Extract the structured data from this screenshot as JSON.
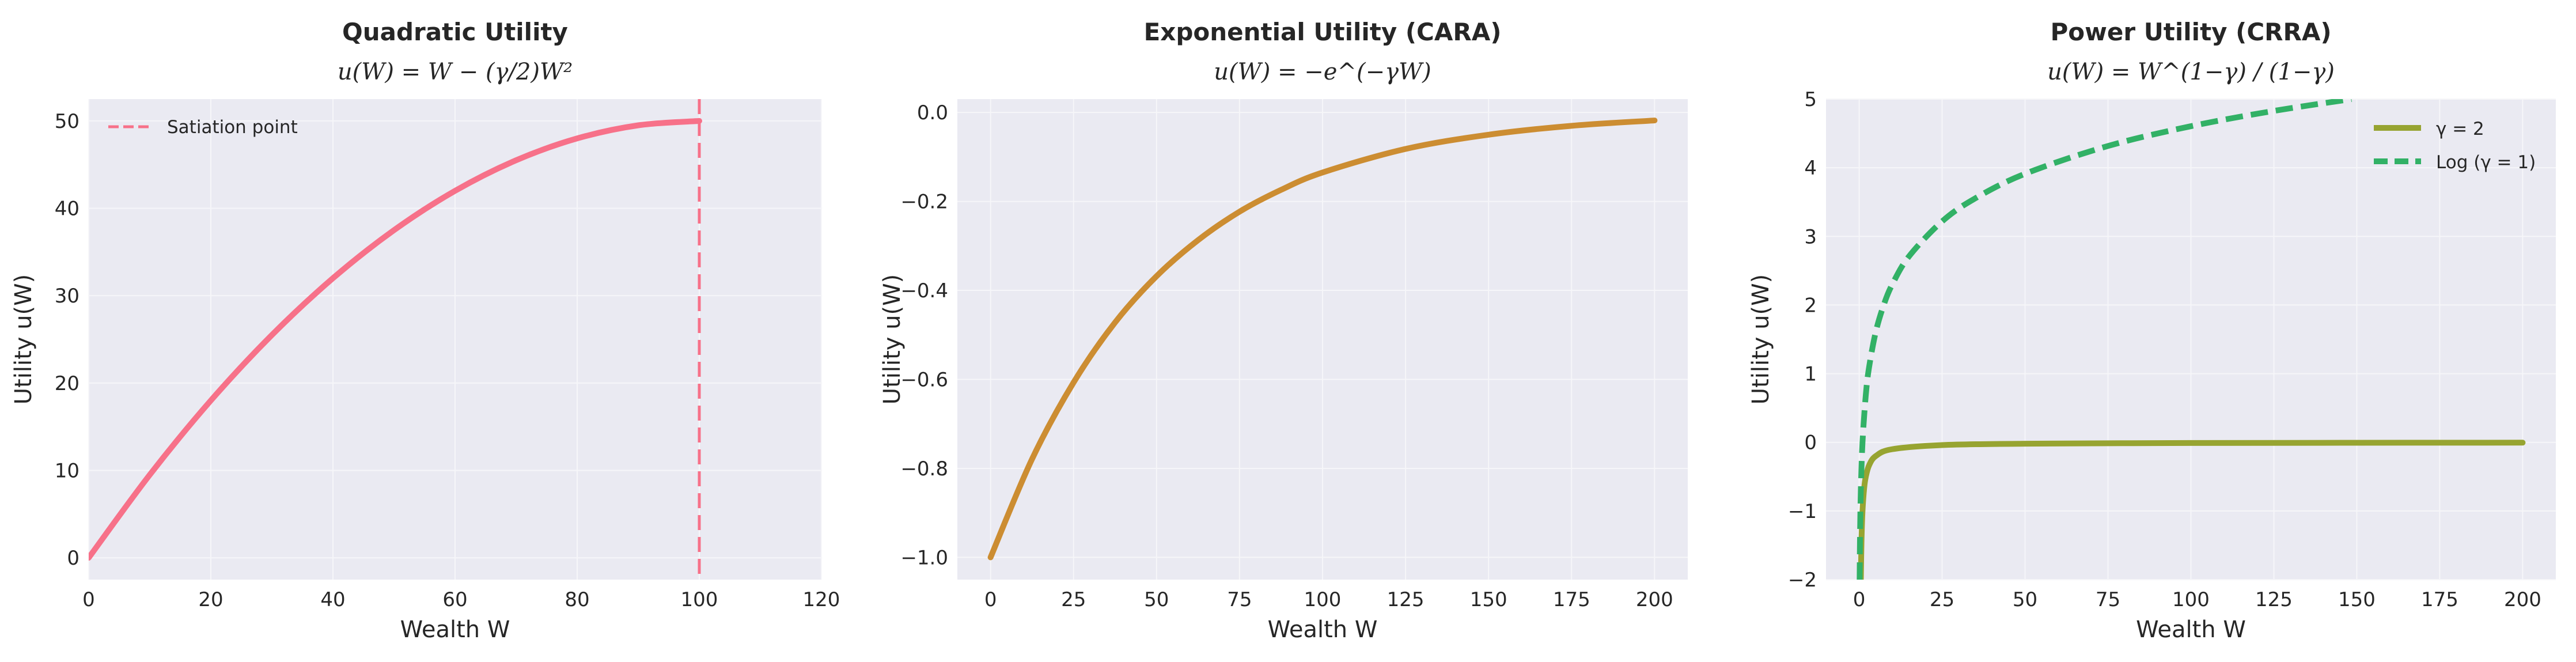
{
  "chart_data": [
    {
      "type": "line",
      "title": "Quadratic Utility",
      "subtitle": "u(W) = W − (γ/2)W²",
      "xlabel": "Wealth W",
      "ylabel": "Utility u(W)",
      "xlim": [
        0,
        120
      ],
      "ylim": [
        -2.5,
        52.5
      ],
      "xticks": [
        0,
        20,
        40,
        60,
        80,
        100,
        120
      ],
      "yticks": [
        0,
        10,
        20,
        30,
        40,
        50
      ],
      "grid": true,
      "legend_position": "upper-left",
      "series": [
        {
          "x": [
            0,
            10,
            20,
            30,
            40,
            50,
            60,
            70,
            80,
            90,
            100
          ],
          "y": [
            0,
            9.5,
            18,
            25.5,
            32,
            37.5,
            42,
            45.5,
            48,
            49.5,
            50
          ],
          "color": "#f77189",
          "style": "solid"
        }
      ],
      "vlines": [
        {
          "x": 100,
          "name": "Satiation point",
          "color": "#f77189",
          "style": "dashed"
        }
      ]
    },
    {
      "type": "line",
      "title": "Exponential Utility (CARA)",
      "subtitle": "u(W) = −e^(−γW)",
      "xlabel": "Wealth W",
      "ylabel": "Utility u(W)",
      "xlim": [
        -10,
        210
      ],
      "ylim": [
        -1.05,
        0.03
      ],
      "xticks": [
        0,
        25,
        50,
        75,
        100,
        125,
        150,
        175,
        200
      ],
      "yticks": [
        -1.0,
        -0.8,
        -0.6,
        -0.4,
        -0.2,
        0.0
      ],
      "ytick_labels": [
        "−1.0",
        "−0.8",
        "−0.6",
        "−0.4",
        "−0.2",
        "0.0"
      ],
      "grid": true,
      "series": [
        {
          "x": [
            0,
            12.5,
            25,
            37.5,
            50,
            62.5,
            75,
            87.5,
            100,
            125,
            150,
            175,
            200
          ],
          "y": [
            -1,
            -0.779,
            -0.607,
            -0.472,
            -0.368,
            -0.287,
            -0.223,
            -0.174,
            -0.135,
            -0.082,
            -0.05,
            -0.03,
            -0.018
          ],
          "color": "#cc8d32",
          "style": "solid"
        }
      ]
    },
    {
      "type": "line",
      "title": "Power Utility (CRRA)",
      "subtitle": "u(W) = W^(1−γ) / (1−γ)",
      "xlabel": "Wealth W",
      "ylabel": "Utility u(W)",
      "xlim": [
        -10,
        210
      ],
      "ylim": [
        -2,
        5
      ],
      "xticks": [
        0,
        25,
        50,
        75,
        100,
        125,
        150,
        175,
        200
      ],
      "yticks": [
        -2,
        -1,
        0,
        1,
        2,
        3,
        4,
        5
      ],
      "ytick_labels": [
        "−2",
        "−1",
        "0",
        "1",
        "2",
        "3",
        "4",
        "5"
      ],
      "grid": true,
      "legend_position": "upper-right",
      "series": [
        {
          "name": "γ = 2",
          "x": [
            0.5,
            0.7,
            1,
            1.5,
            2,
            3,
            5,
            10,
            25,
            50,
            100,
            150,
            200
          ],
          "y": [
            -2,
            -1.429,
            -1,
            -0.667,
            -0.5,
            -0.333,
            -0.2,
            -0.1,
            -0.04,
            -0.02,
            -0.01,
            -0.0067,
            -0.005
          ],
          "color": "#97a431",
          "style": "solid"
        },
        {
          "name": "Log (γ = 1)",
          "x": [
            0.135,
            0.25,
            0.5,
            1,
            2,
            3,
            5,
            7.5,
            10,
            15,
            25,
            35,
            50,
            75,
            100,
            125,
            148.4
          ],
          "y": [
            -2,
            -1.386,
            -0.693,
            0,
            0.693,
            1.099,
            1.609,
            2.015,
            2.303,
            2.708,
            3.219,
            3.555,
            3.912,
            4.317,
            4.605,
            4.828,
            5
          ],
          "color": "#32b166",
          "style": "dashed"
        }
      ]
    }
  ]
}
